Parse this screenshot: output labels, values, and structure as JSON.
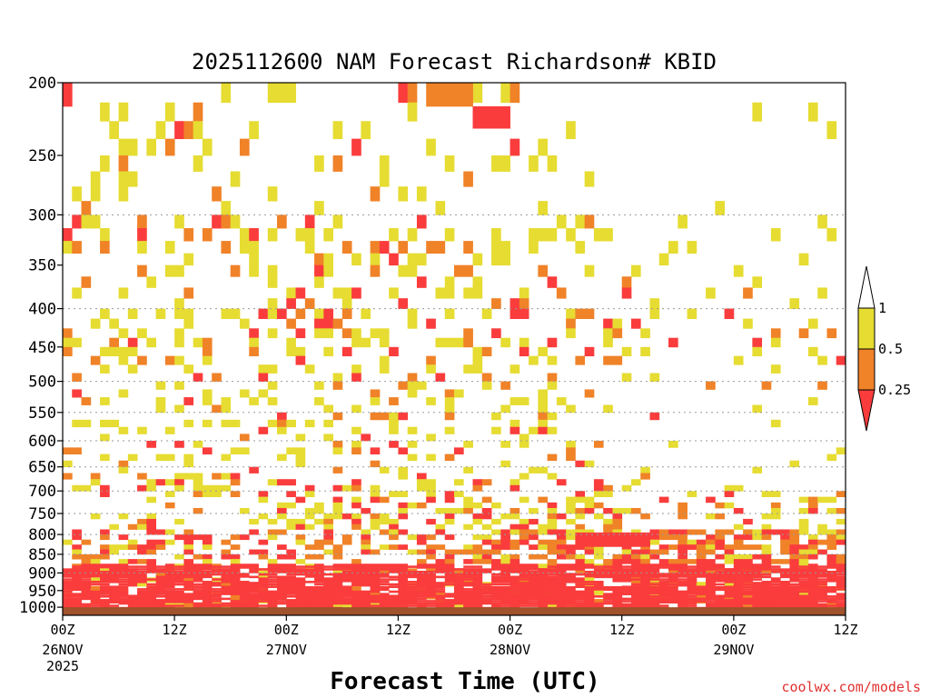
{
  "chart_data": {
    "type": "heatmap",
    "title": "2025112600 NAM Forecast Richardson# KBID",
    "xlabel": "Forecast Time (UTC)",
    "credit": "coolwx.com/models",
    "y_ticks": [
      200,
      250,
      300,
      350,
      400,
      450,
      500,
      550,
      600,
      650,
      700,
      750,
      800,
      850,
      900,
      950,
      1000
    ],
    "y_range": [
      200,
      1025
    ],
    "y_scale": "log",
    "y_gridlines": [
      300,
      400,
      500,
      550,
      600,
      650,
      700,
      750,
      800,
      850,
      900
    ],
    "x_range_hours": [
      0,
      84
    ],
    "x_ticks": [
      {
        "hour": 0,
        "line1": "00Z",
        "line2": "26NOV",
        "line3": "2025"
      },
      {
        "hour": 12,
        "line1": "12Z",
        "line2": "",
        "line3": ""
      },
      {
        "hour": 24,
        "line1": "00Z",
        "line2": "27NOV",
        "line3": ""
      },
      {
        "hour": 36,
        "line1": "12Z",
        "line2": "",
        "line3": ""
      },
      {
        "hour": 48,
        "line1": "00Z",
        "line2": "28NOV",
        "line3": ""
      },
      {
        "hour": 60,
        "line1": "12Z",
        "line2": "",
        "line3": ""
      },
      {
        "hour": 72,
        "line1": "00Z",
        "line2": "29NOV",
        "line3": ""
      },
      {
        "hour": 84,
        "line1": "12Z",
        "line2": "",
        "line3": ""
      }
    ],
    "legend": {
      "labels": [
        "1",
        "0.5",
        "0.25"
      ],
      "bins": [
        {
          "range": "> 1",
          "color": "#ffffff"
        },
        {
          "range": "0.5 – 1",
          "color": "#e6dc32"
        },
        {
          "range": "0.25 – 0.5",
          "color": "#f08228"
        },
        {
          "range": "< 0.25",
          "color": "#fa3c3c"
        }
      ]
    },
    "colors": {
      "ri_lt_025": "#fa3c3c",
      "ri_025_05": "#f08228",
      "ri_05_1": "#e6dc32",
      "ri_gt_1": "#ffffff",
      "ground": "#a0522d"
    },
    "notable_regions": [
      {
        "hours": [
          39,
          44
        ],
        "pressure": [
          200,
          215
        ],
        "category": "0.25-0.5"
      },
      {
        "hours": [
          44,
          48
        ],
        "pressure": [
          215,
          230
        ],
        "category": "<0.25"
      },
      {
        "hours": [
          0,
          1
        ],
        "pressure": [
          200,
          215
        ],
        "category": "<0.25"
      },
      {
        "hours": [
          55,
          63
        ],
        "pressure": [
          795,
          830
        ],
        "category": "<0.25"
      },
      {
        "hours": [
          0,
          84
        ],
        "pressure": [
          880,
          1000
        ],
        "category": "<0.25 (banded)"
      },
      {
        "hours": [
          0,
          84
        ],
        "pressure": [
          1000,
          1025
        ],
        "category": "below ground"
      }
    ]
  }
}
